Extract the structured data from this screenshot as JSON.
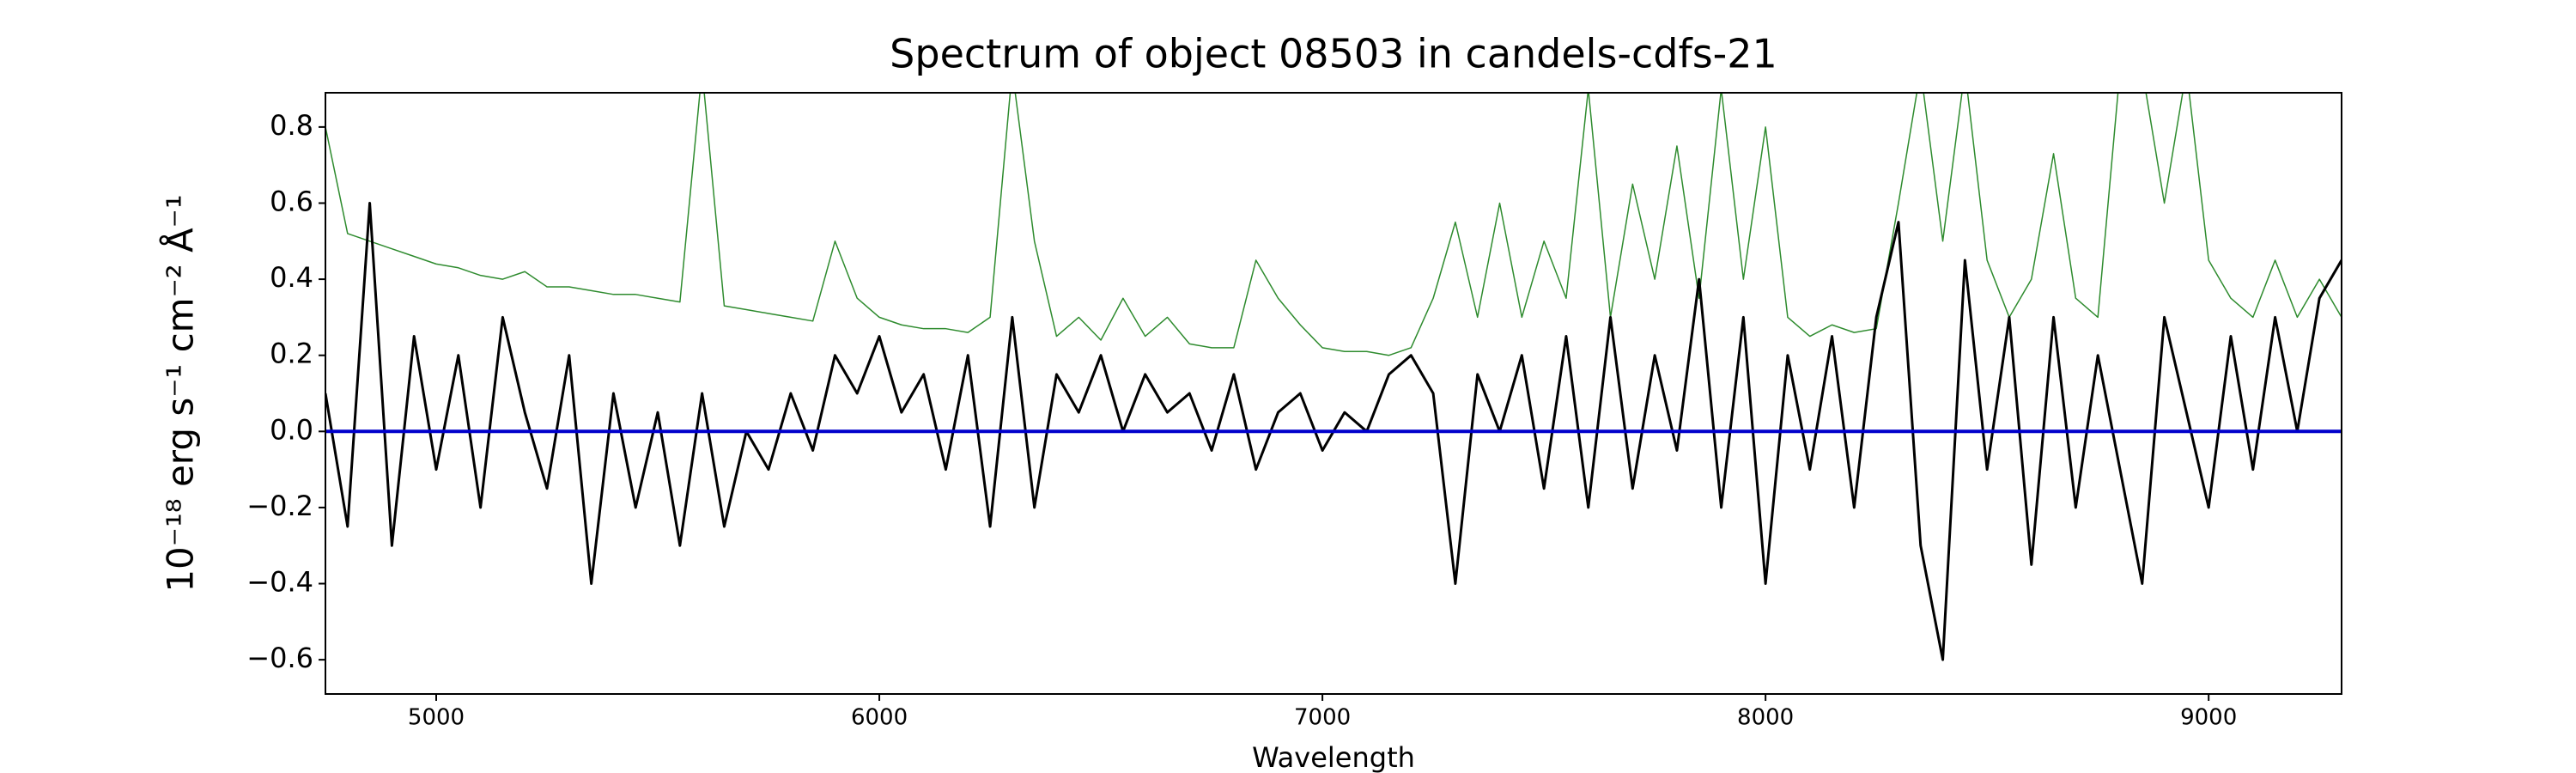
{
  "chart_data": {
    "type": "line",
    "title": "Spectrum of object 08503 in candels-cdfs-21",
    "xlabel": "Wavelength",
    "ylabel": "10⁻¹⁸ erg s⁻¹ cm⁻² Å⁻¹",
    "x": [
      4750,
      4800,
      4850,
      4900,
      4950,
      5000,
      5050,
      5100,
      5150,
      5200,
      5250,
      5300,
      5350,
      5400,
      5450,
      5500,
      5550,
      5600,
      5650,
      5700,
      5750,
      5800,
      5850,
      5900,
      5950,
      6000,
      6050,
      6100,
      6150,
      6200,
      6250,
      6300,
      6350,
      6400,
      6450,
      6500,
      6550,
      6600,
      6650,
      6700,
      6750,
      6800,
      6850,
      6900,
      6950,
      7000,
      7050,
      7100,
      7150,
      7200,
      7250,
      7300,
      7350,
      7400,
      7450,
      7500,
      7550,
      7600,
      7650,
      7700,
      7750,
      7800,
      7850,
      7900,
      7950,
      8000,
      8050,
      8100,
      8150,
      8200,
      8250,
      8300,
      8350,
      8400,
      8450,
      8500,
      8550,
      8600,
      8650,
      8700,
      8750,
      8800,
      8850,
      8900,
      8950,
      9000,
      9050,
      9100,
      9150,
      9200,
      9250,
      9300
    ],
    "series": [
      {
        "color": "#2e8b2e",
        "values": [
          0.8,
          0.52,
          0.5,
          0.48,
          0.46,
          0.44,
          0.43,
          0.41,
          0.4,
          0.42,
          0.38,
          0.38,
          0.37,
          0.36,
          0.36,
          0.35,
          0.34,
          0.95,
          0.33,
          0.32,
          0.31,
          0.3,
          0.29,
          0.5,
          0.35,
          0.3,
          0.28,
          0.27,
          0.27,
          0.26,
          0.3,
          0.95,
          0.5,
          0.25,
          0.3,
          0.24,
          0.35,
          0.25,
          0.3,
          0.23,
          0.22,
          0.22,
          0.45,
          0.35,
          0.28,
          0.22,
          0.21,
          0.21,
          0.2,
          0.22,
          0.35,
          0.55,
          0.3,
          0.6,
          0.3,
          0.5,
          0.35,
          0.9,
          0.3,
          0.65,
          0.4,
          0.75,
          0.35,
          0.9,
          0.4,
          0.8,
          0.3,
          0.25,
          0.28,
          0.26,
          0.27,
          0.6,
          0.95,
          0.5,
          0.95,
          0.45,
          0.3,
          0.4,
          0.73,
          0.35,
          0.3,
          0.95,
          0.95,
          0.6,
          0.95,
          0.45,
          0.35,
          0.3,
          0.45,
          0.3,
          0.4,
          0.3
        ]
      },
      {
        "color": "#000000",
        "values": [
          0.1,
          -0.25,
          0.6,
          -0.3,
          0.25,
          -0.1,
          0.2,
          -0.2,
          0.3,
          0.05,
          -0.15,
          0.2,
          -0.4,
          0.1,
          -0.2,
          0.05,
          -0.3,
          0.1,
          -0.25,
          0.0,
          -0.1,
          0.1,
          -0.05,
          0.2,
          0.1,
          0.25,
          0.05,
          0.15,
          -0.1,
          0.2,
          -0.25,
          0.3,
          -0.2,
          0.15,
          0.05,
          0.2,
          0.0,
          0.15,
          0.05,
          0.1,
          -0.05,
          0.15,
          -0.1,
          0.05,
          0.1,
          -0.05,
          0.05,
          0.0,
          0.15,
          0.2,
          0.1,
          -0.4,
          0.15,
          0.0,
          0.2,
          -0.15,
          0.25,
          -0.2,
          0.3,
          -0.15,
          0.2,
          -0.05,
          0.4,
          -0.2,
          0.3,
          -0.4,
          0.2,
          -0.1,
          0.25,
          -0.2,
          0.3,
          0.55,
          -0.3,
          -0.6,
          0.45,
          -0.1,
          0.3,
          -0.35,
          0.3,
          -0.2,
          0.2,
          -0.1,
          -0.4,
          0.3,
          0.05,
          -0.2,
          0.25,
          -0.1,
          0.3,
          0.0,
          0.35,
          0.45
        ]
      },
      {
        "color": "#0000cc",
        "values": [
          0,
          0,
          0,
          0,
          0,
          0,
          0,
          0,
          0,
          0,
          0,
          0,
          0,
          0,
          0,
          0,
          0,
          0,
          0,
          0,
          0,
          0,
          0,
          0,
          0,
          0,
          0,
          0,
          0,
          0,
          0,
          0,
          0,
          0,
          0,
          0,
          0,
          0,
          0,
          0,
          0,
          0,
          0,
          0,
          0,
          0,
          0,
          0,
          0,
          0,
          0,
          0,
          0,
          0,
          0,
          0,
          0,
          0,
          0,
          0,
          0,
          0,
          0,
          0,
          0,
          0,
          0,
          0,
          0,
          0,
          0,
          0,
          0,
          0,
          0,
          0,
          0,
          0,
          0,
          0,
          0,
          0,
          0,
          0,
          0,
          0,
          0,
          0,
          0,
          0,
          0,
          0
        ]
      }
    ],
    "xlim": [
      4750,
      9300
    ],
    "ylim": [
      -0.69,
      0.89
    ],
    "xticks": [
      5000,
      6000,
      7000,
      8000,
      9000
    ],
    "yticks": [
      {
        "value": -0.6,
        "label": "−0.6"
      },
      {
        "value": -0.4,
        "label": "−0.4"
      },
      {
        "value": -0.2,
        "label": "−0.2"
      },
      {
        "value": 0,
        "label": "0.0"
      },
      0.2,
      0.4,
      0.6,
      0.8
    ]
  }
}
